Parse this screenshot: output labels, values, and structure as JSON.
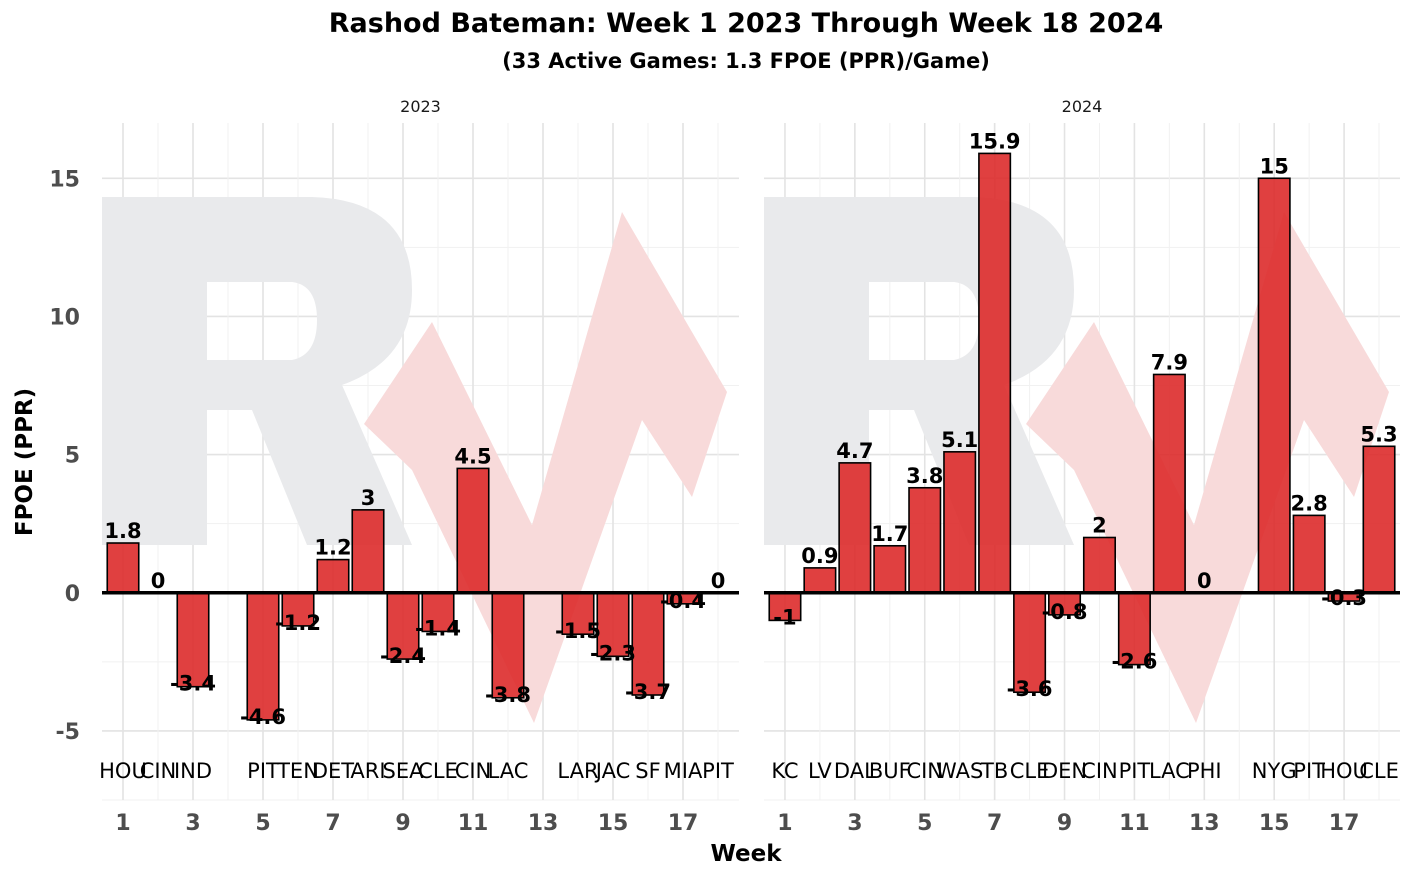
{
  "chart_data": {
    "type": "bar",
    "title": "Rashod Bateman: Week 1 2023 Through Week 18 2024",
    "subtitle": "(33 Active Games: 1.3 FPOE (PPR)/Game)",
    "xlabel": "Week",
    "ylabel": "FPOE (PPR)",
    "ylim": [
      -7.5,
      17
    ],
    "xlim": [
      0.4,
      18.6
    ],
    "yticks": [
      -5,
      0,
      5,
      10,
      15
    ],
    "xticks": [
      1,
      3,
      5,
      7,
      9,
      11,
      13,
      15,
      17
    ],
    "grid": true,
    "bar_color": "#dc2626",
    "bar_outline": "#000000",
    "watermark_colors": {
      "letter": "#e9eaec",
      "arrow": "#f8dada"
    },
    "facets": [
      {
        "label": "2023",
        "bars": [
          {
            "week": 1,
            "value": 1.8,
            "label": "1.8",
            "opponent": "HOU"
          },
          {
            "week": 2,
            "value": 0,
            "label": "0",
            "opponent": "CIN"
          },
          {
            "week": 3,
            "value": -3.4,
            "label": "-3.4",
            "opponent": "IND"
          },
          {
            "week": 5,
            "value": -4.6,
            "label": "-4.6",
            "opponent": "PIT"
          },
          {
            "week": 6,
            "value": -1.2,
            "label": "-1.2",
            "opponent": "TEN"
          },
          {
            "week": 7,
            "value": 1.2,
            "label": "1.2",
            "opponent": "DET"
          },
          {
            "week": 8,
            "value": 3,
            "label": "3",
            "opponent": "ARI"
          },
          {
            "week": 9,
            "value": -2.4,
            "label": "-2.4",
            "opponent": "SEA"
          },
          {
            "week": 10,
            "value": -1.4,
            "label": "-1.4",
            "opponent": "CLE"
          },
          {
            "week": 11,
            "value": 4.5,
            "label": "4.5",
            "opponent": "CIN"
          },
          {
            "week": 12,
            "value": -3.8,
            "label": "-3.8",
            "opponent": "LAC"
          },
          {
            "week": 14,
            "value": -1.5,
            "label": "-1.5",
            "opponent": "LAR"
          },
          {
            "week": 15,
            "value": -2.3,
            "label": "-2.3",
            "opponent": "JAC"
          },
          {
            "week": 16,
            "value": -3.7,
            "label": "-3.7",
            "opponent": "SF"
          },
          {
            "week": 17,
            "value": -0.4,
            "label": "-0.4",
            "opponent": "MIA"
          },
          {
            "week": 18,
            "value": 0,
            "label": "0",
            "opponent": "PIT"
          }
        ]
      },
      {
        "label": "2024",
        "bars": [
          {
            "week": 1,
            "value": -1,
            "label": "-1",
            "opponent": "KC"
          },
          {
            "week": 2,
            "value": 0.9,
            "label": "0.9",
            "opponent": "LV"
          },
          {
            "week": 3,
            "value": 4.7,
            "label": "4.7",
            "opponent": "DAL"
          },
          {
            "week": 4,
            "value": 1.7,
            "label": "1.7",
            "opponent": "BUF"
          },
          {
            "week": 5,
            "value": 3.8,
            "label": "3.8",
            "opponent": "CIN"
          },
          {
            "week": 6,
            "value": 5.1,
            "label": "5.1",
            "opponent": "WAS"
          },
          {
            "week": 7,
            "value": 15.9,
            "label": "15.9",
            "opponent": "TB"
          },
          {
            "week": 8,
            "value": -3.6,
            "label": "-3.6",
            "opponent": "CLE"
          },
          {
            "week": 9,
            "value": -0.8,
            "label": "-0.8",
            "opponent": "DEN"
          },
          {
            "week": 10,
            "value": 2,
            "label": "2",
            "opponent": "CIN"
          },
          {
            "week": 11,
            "value": -2.6,
            "label": "-2.6",
            "opponent": "PIT"
          },
          {
            "week": 12,
            "value": 7.9,
            "label": "7.9",
            "opponent": "LAC"
          },
          {
            "week": 13,
            "value": 0,
            "label": "0",
            "opponent": "PHI"
          },
          {
            "week": 15,
            "value": 15,
            "label": "15",
            "opponent": "NYG"
          },
          {
            "week": 16,
            "value": 2.8,
            "label": "2.8",
            "opponent": "PIT"
          },
          {
            "week": 17,
            "value": -0.3,
            "label": "-0.3",
            "opponent": "HOU"
          },
          {
            "week": 18,
            "value": 5.3,
            "label": "5.3",
            "opponent": "CLE"
          }
        ]
      }
    ]
  }
}
